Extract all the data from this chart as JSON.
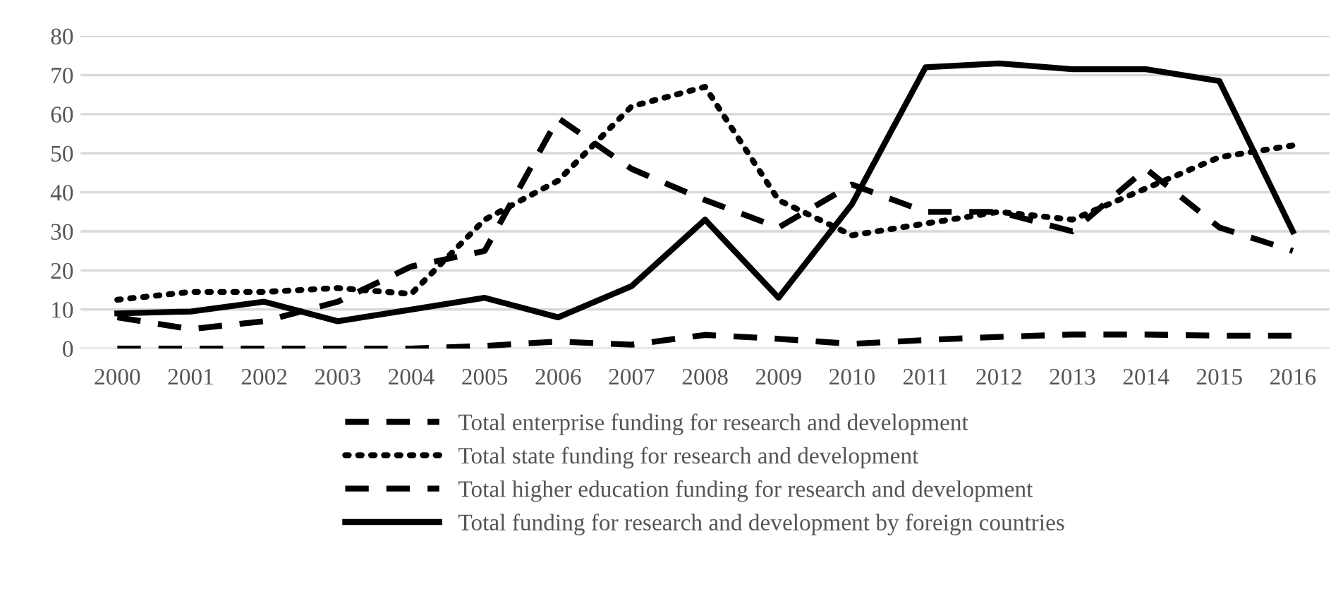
{
  "chart_data": {
    "type": "line",
    "categories": [
      "2000",
      "2001",
      "2002",
      "2003",
      "2004",
      "2005",
      "2006",
      "2007",
      "2008",
      "2009",
      "2010",
      "2011",
      "2012",
      "2013",
      "2014",
      "2015",
      "2016"
    ],
    "series": [
      {
        "name": "Total enterprise funding for research and development",
        "color": "#000000",
        "line_style": "dashed",
        "values": [
          8,
          5,
          7,
          12,
          21,
          25,
          59,
          46,
          38,
          31,
          42,
          35,
          35,
          30,
          46,
          31,
          25
        ]
      },
      {
        "name": "Total state funding for research and development",
        "color": "#000000",
        "line_style": "dotted",
        "values": [
          12.5,
          14.5,
          14.5,
          15.5,
          14,
          33,
          43,
          62,
          67,
          38,
          29,
          32,
          35,
          33,
          41,
          49,
          52
        ]
      },
      {
        "name": "Total higher education funding for research and development",
        "color": "#000000",
        "line_style": "dashed",
        "values": [
          0,
          0,
          0,
          0,
          0,
          0.7,
          1.8,
          1,
          3.5,
          2.5,
          1.2,
          2.2,
          3,
          3.6,
          3.6,
          3.3,
          3.3
        ]
      },
      {
        "name": "Total funding for research and development by foreign countries",
        "color": "#000000",
        "line_style": "solid",
        "values": [
          9,
          9.5,
          12,
          7,
          10,
          13,
          8,
          16,
          33,
          13,
          37,
          72,
          73,
          71.5,
          71.5,
          68.5,
          30
        ]
      }
    ],
    "ylim": [
      0,
      80
    ],
    "yticks": [
      0,
      10,
      20,
      30,
      40,
      50,
      60,
      70,
      80
    ],
    "grid": "y",
    "legend": "bottom",
    "marker": "none"
  }
}
